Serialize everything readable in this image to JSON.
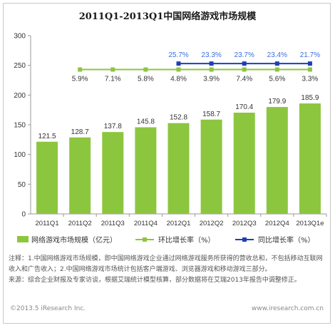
{
  "chart_data": {
    "type": "bar",
    "title": "2011Q1-2013Q1中国网络游戏市场规模",
    "categories": [
      "2011Q1",
      "2011Q2",
      "2011Q3",
      "2011Q4",
      "2012Q1",
      "2012Q2",
      "2012Q3",
      "2012Q4",
      "2013Q1e"
    ],
    "ylim": [
      0,
      300
    ],
    "yticks": [
      0,
      50,
      100,
      150,
      200,
      250,
      300
    ],
    "grid": false,
    "legend_position": "bottom",
    "bars": {
      "name": "网络游戏市场规模（亿元）",
      "values": [
        121.5,
        128.7,
        137.8,
        145.8,
        152.8,
        158.7,
        170.4,
        179.9,
        185.9
      ],
      "labels": [
        "121.5",
        "128.7",
        "137.8",
        "145.8",
        "152.8",
        "158.7",
        "170.4",
        "179.9",
        "185.9"
      ],
      "color": "#8cc63f"
    },
    "series": [
      {
        "name": "环比增长率（%）",
        "labels": [
          "5.9%",
          "7.1%",
          "5.8%",
          "4.8%",
          "3.9%",
          "7.4%",
          "5.6%",
          "3.3%"
        ],
        "start_index": 1,
        "line_level": 243,
        "color": "#8cc63f"
      },
      {
        "name": "同比增长率（%）",
        "labels": [
          "25.7%",
          "23.3%",
          "23.7%",
          "23.4%",
          "21.7%"
        ],
        "start_index": 4,
        "line_level": 253,
        "color": "#1f3fb5"
      }
    ]
  },
  "notes": {
    "line1": "注释：1.中国网络游戏市场规模，即中国网络游戏企业通过网络游戏服务所获得的营收总和，不包括移动互联网收入和广告收入；2.中国网络游戏市场统计包括客户端游戏、浏览器游戏和移动游戏三部分。",
    "line2": "来源：综合企业财报及专家访谈，根据艾瑞统计模型核算，部分数据将在艾瑞2013年报告中调整修正。"
  },
  "footer": {
    "left": "©2013.5 iResearch Inc.",
    "right": "www.iresearch.com.cn"
  }
}
